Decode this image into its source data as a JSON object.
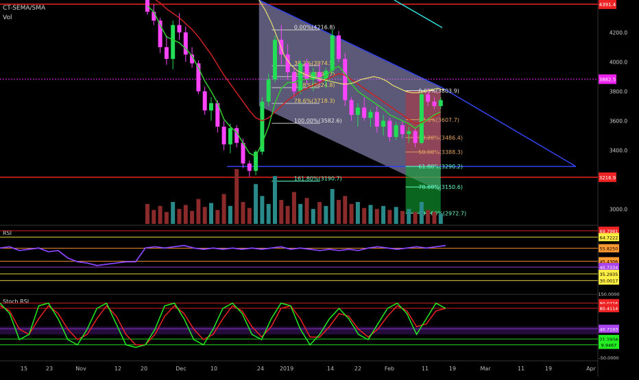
{
  "header": {
    "indicator": "CT-SEMA/SMA",
    "volume": "Vol"
  },
  "colors": {
    "up": "#ff44ff",
    "down": "#22dd55",
    "ema": "#33cc33",
    "sma": "#cc2222",
    "yellow": "#e8e070",
    "channel": "#a8a0d8",
    "channel_edge": "#3344ee",
    "red_line": "#ee2222",
    "dashed": "#ee22ee",
    "fib_label": "#e8e8e8",
    "fib_green": "#66ffcc",
    "rsi_line": "#8844ff",
    "stoch_k": "#22ee22",
    "stoch_d": "#ee2222",
    "vol_up": "#2a8a8a",
    "vol_down": "#8a2a2a"
  },
  "price_axis": {
    "ticks": [
      "4200.0",
      "4000.0",
      "3800.0",
      "3600.0",
      "3400.0",
      "3000.0"
    ],
    "badges": [
      {
        "value": "4391.4",
        "color": "#ee2222",
        "text_color": "#ffffff"
      },
      {
        "value": "3882.5",
        "color": "#ee22ee",
        "text_color": "#ffffff"
      },
      {
        "value": "3216.9",
        "color": "#ee2222",
        "text_color": "#ffffff"
      }
    ]
  },
  "fib_upper": [
    {
      "label": "0.00%(4216.8)"
    },
    {
      "label": "38.2%(3974.5)"
    },
    {
      "label": "50.0%(3899.7)"
    },
    {
      "label": "61.8%(3824.8)"
    },
    {
      "label": "78.6%(3718.3)"
    },
    {
      "label": "100.00%(3582.6)"
    },
    {
      "label": "161.80%(3190.7)"
    }
  ],
  "fib_lower": [
    {
      "label": "0.00%(3803.9)"
    },
    {
      "label": "23.6%(3607.7)"
    },
    {
      "label": "38.20%(3486.4)"
    },
    {
      "label": "50.00%(3388.3)"
    },
    {
      "label": "61.80%(3290.2)"
    },
    {
      "label": "78.60%(3150.6)"
    },
    {
      "label": "100.00%(2972.7)"
    }
  ],
  "rsi": {
    "title": "RSI",
    "ticks": [
      "150.0000"
    ],
    "badges": [
      {
        "value": "69.7981",
        "color": "#ee2222",
        "text_color": "#ffffff"
      },
      {
        "value": "64.7222",
        "color": "#ffee44",
        "text_color": "#000000"
      },
      {
        "value": "55.8250",
        "color": "#ff9933",
        "text_color": "#000000"
      },
      {
        "value": "45.4306",
        "color": "#ff9933",
        "text_color": "#000000"
      },
      {
        "value": "40.7334",
        "color": "#aa44ee",
        "text_color": "#ffffff"
      },
      {
        "value": "35.2935",
        "color": "#ffee44",
        "text_color": "#000000"
      },
      {
        "value": "30.0017",
        "color": "#ffee44",
        "text_color": "#000000"
      }
    ]
  },
  "stoch": {
    "title": "Stoch RSI",
    "ticks": [
      "-50.0000"
    ],
    "badges": [
      {
        "value": "90.0716",
        "color": "#ee2222",
        "text_color": "#ffffff"
      },
      {
        "value": "80.4114",
        "color": "#ee2222",
        "text_color": "#ffffff"
      },
      {
        "value": "40.7193",
        "color": "#aa44ee",
        "text_color": "#ffffff"
      },
      {
        "value": "21.1934",
        "color": "#22ee22",
        "text_color": "#000000"
      },
      {
        "value": "9.9467",
        "color": "#22ee22",
        "text_color": "#000000"
      }
    ]
  },
  "time_axis": [
    "15",
    "23",
    "Nov",
    "12",
    "20",
    "Dec",
    "10",
    "24",
    "2019",
    "14",
    "22",
    "Feb",
    "11",
    "19",
    "Mar",
    "11",
    "19",
    "Apr"
  ],
  "chart_data": {
    "type": "candlestick",
    "title": "",
    "x_range": [
      "Oct 15",
      "Apr"
    ],
    "y_range": [
      2900,
      4420
    ],
    "candles": [
      {
        "o": 4420,
        "h": 4440,
        "l": 4320,
        "c": 4340
      },
      {
        "o": 4340,
        "h": 4390,
        "l": 4250,
        "c": 4280
      },
      {
        "o": 4280,
        "h": 4300,
        "l": 4060,
        "c": 4100
      },
      {
        "o": 4100,
        "h": 4180,
        "l": 3980,
        "c": 4020
      },
      {
        "o": 4020,
        "h": 4280,
        "l": 3950,
        "c": 4250
      },
      {
        "o": 4250,
        "h": 4330,
        "l": 4150,
        "c": 4200
      },
      {
        "o": 4200,
        "h": 4240,
        "l": 4000,
        "c": 4050
      },
      {
        "o": 4050,
        "h": 4100,
        "l": 3960,
        "c": 3990
      },
      {
        "o": 3990,
        "h": 4010,
        "l": 3780,
        "c": 3800
      },
      {
        "o": 3800,
        "h": 3830,
        "l": 3640,
        "c": 3670
      },
      {
        "o": 3670,
        "h": 3760,
        "l": 3600,
        "c": 3720
      },
      {
        "o": 3720,
        "h": 3740,
        "l": 3520,
        "c": 3560
      },
      {
        "o": 3560,
        "h": 3600,
        "l": 3400,
        "c": 3440
      },
      {
        "o": 3440,
        "h": 3580,
        "l": 3380,
        "c": 3550
      },
      {
        "o": 3550,
        "h": 3570,
        "l": 3420,
        "c": 3450
      },
      {
        "o": 3450,
        "h": 3480,
        "l": 3280,
        "c": 3310
      },
      {
        "o": 3310,
        "h": 3330,
        "l": 3220,
        "c": 3260
      },
      {
        "o": 3260,
        "h": 3400,
        "l": 3230,
        "c": 3390
      },
      {
        "o": 3390,
        "h": 3760,
        "l": 3370,
        "c": 3730
      },
      {
        "o": 3730,
        "h": 3920,
        "l": 3700,
        "c": 3880
      },
      {
        "o": 3880,
        "h": 4180,
        "l": 3860,
        "c": 4150
      },
      {
        "o": 4150,
        "h": 4250,
        "l": 3980,
        "c": 4050
      },
      {
        "o": 4050,
        "h": 4120,
        "l": 3880,
        "c": 3930
      },
      {
        "o": 3930,
        "h": 3960,
        "l": 3760,
        "c": 3800
      },
      {
        "o": 3800,
        "h": 4010,
        "l": 3780,
        "c": 3990
      },
      {
        "o": 3990,
        "h": 4020,
        "l": 3850,
        "c": 3880
      },
      {
        "o": 3880,
        "h": 3960,
        "l": 3800,
        "c": 3930
      },
      {
        "o": 3930,
        "h": 3990,
        "l": 3840,
        "c": 3870
      },
      {
        "o": 3870,
        "h": 3960,
        "l": 3820,
        "c": 3940
      },
      {
        "o": 3940,
        "h": 4220,
        "l": 3920,
        "c": 4180
      },
      {
        "o": 4180,
        "h": 4210,
        "l": 4000,
        "c": 4020
      },
      {
        "o": 4020,
        "h": 4060,
        "l": 3700,
        "c": 3740
      },
      {
        "o": 3740,
        "h": 3760,
        "l": 3600,
        "c": 3640
      },
      {
        "o": 3640,
        "h": 3720,
        "l": 3560,
        "c": 3690
      },
      {
        "o": 3690,
        "h": 3760,
        "l": 3600,
        "c": 3620
      },
      {
        "o": 3620,
        "h": 3680,
        "l": 3560,
        "c": 3660
      },
      {
        "o": 3660,
        "h": 3700,
        "l": 3520,
        "c": 3560
      },
      {
        "o": 3560,
        "h": 3640,
        "l": 3500,
        "c": 3600
      },
      {
        "o": 3600,
        "h": 3620,
        "l": 3460,
        "c": 3490
      },
      {
        "o": 3490,
        "h": 3590,
        "l": 3470,
        "c": 3570
      },
      {
        "o": 3570,
        "h": 3600,
        "l": 3480,
        "c": 3510
      },
      {
        "o": 3510,
        "h": 3560,
        "l": 3450,
        "c": 3530
      },
      {
        "o": 3530,
        "h": 3550,
        "l": 3420,
        "c": 3450
      },
      {
        "o": 3450,
        "h": 3800,
        "l": 3440,
        "c": 3780
      },
      {
        "o": 3780,
        "h": 3820,
        "l": 3700,
        "c": 3730
      },
      {
        "o": 3730,
        "h": 3760,
        "l": 3680,
        "c": 3700
      },
      {
        "o": 3700,
        "h": 3760,
        "l": 3680,
        "c": 3740
      }
    ],
    "ema": [
      4380,
      4340,
      4250,
      4170,
      4150,
      4130,
      4090,
      4040,
      3960,
      3870,
      3800,
      3720,
      3610,
      3560,
      3520,
      3450,
      3380,
      3360,
      3450,
      3560,
      3720,
      3820,
      3860,
      3860,
      3880,
      3880,
      3890,
      3890,
      3900,
      3950,
      3970,
      3920,
      3850,
      3800,
      3770,
      3740,
      3710,
      3680,
      3640,
      3620,
      3600,
      3580,
      3550,
      3580,
      3610,
      3640,
      3660
    ],
    "sma": [
      4440,
      4430,
      4400,
      4360,
      4330,
      4300,
      4260,
      4220,
      4170,
      4110,
      4050,
      3980,
      3910,
      3850,
      3790,
      3730,
      3670,
      3620,
      3600,
      3620,
      3660,
      3700,
      3740,
      3770,
      3800,
      3820,
      3840,
      3860,
      3880,
      3900,
      3920,
      3910,
      3880,
      3850,
      3820,
      3790,
      3760,
      3730,
      3700,
      3670,
      3640,
      3610,
      3580,
      3590,
      3610,
      3630,
      3650
    ],
    "volume": [
      20,
      14,
      18,
      12,
      22,
      15,
      19,
      13,
      25,
      17,
      21,
      14,
      30,
      18,
      55,
      22,
      16,
      40,
      28,
      20,
      48,
      24,
      18,
      32,
      20,
      26,
      15,
      22,
      18,
      35,
      24,
      28,
      20,
      22,
      16,
      19,
      15,
      18,
      14,
      17,
      13,
      15,
      12,
      22,
      14,
      12,
      10
    ],
    "rsi": [
      56,
      57,
      54,
      55,
      56,
      53,
      54,
      48,
      45,
      44,
      42,
      43,
      44,
      45,
      45,
      56,
      57,
      56,
      57,
      58,
      56,
      55,
      56,
      55,
      56,
      55,
      56,
      55,
      56,
      57,
      55,
      56,
      55,
      54,
      55,
      54,
      55,
      54,
      56,
      57,
      56,
      55,
      56,
      57,
      56,
      57,
      58
    ],
    "rsi_dates": "overlay",
    "stoch_k": [
      90,
      70,
      20,
      30,
      85,
      90,
      60,
      20,
      10,
      40,
      80,
      90,
      50,
      10,
      5,
      10,
      40,
      85,
      90,
      60,
      20,
      10,
      40,
      80,
      90,
      70,
      30,
      20,
      60,
      90,
      85,
      40,
      10,
      30,
      60,
      80,
      60,
      30,
      20,
      50,
      80,
      90,
      70,
      30,
      60,
      90,
      80
    ],
    "stoch_d": [
      85,
      75,
      40,
      30,
      60,
      85,
      70,
      40,
      20,
      30,
      60,
      85,
      65,
      30,
      10,
      10,
      30,
      65,
      85,
      70,
      40,
      20,
      30,
      60,
      85,
      75,
      45,
      25,
      45,
      80,
      85,
      60,
      25,
      25,
      45,
      70,
      65,
      40,
      25,
      40,
      65,
      85,
      75,
      45,
      50,
      75,
      80
    ]
  }
}
